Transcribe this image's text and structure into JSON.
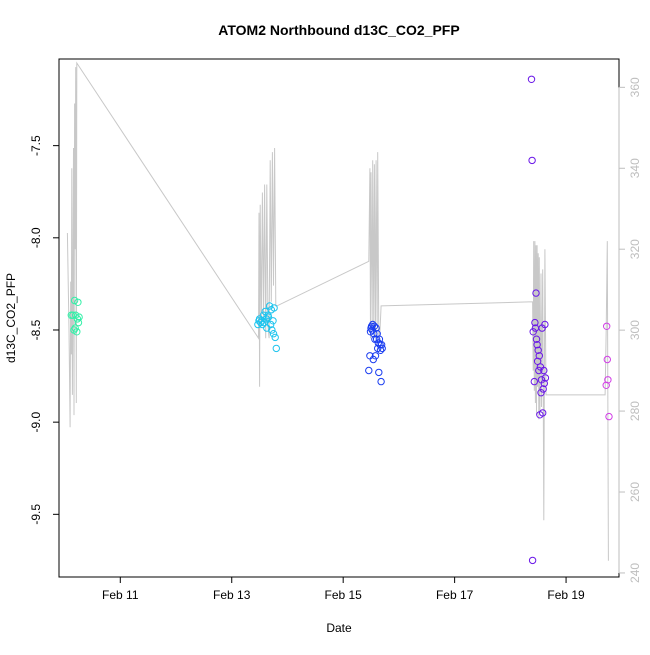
{
  "chart_data": {
    "type": "scatter",
    "title": "ATOM2 Northbound d13C_CO2_PFP",
    "xlabel": "Date",
    "ylabel": "d13C_CO2_PFP",
    "x_unit": "days in February",
    "xlim": [
      9.9,
      19.95
    ],
    "ylim": [
      -9.84,
      -7.03
    ],
    "y2lim": [
      239,
      367
    ],
    "x_ticks": [
      {
        "value": 11,
        "label": "Feb 11"
      },
      {
        "value": 13,
        "label": "Feb 13"
      },
      {
        "value": 15,
        "label": "Feb 15"
      },
      {
        "value": 17,
        "label": "Feb 17"
      },
      {
        "value": 19,
        "label": "Feb 19"
      }
    ],
    "y_ticks": [
      {
        "value": -7.5,
        "label": "-7.5"
      },
      {
        "value": -8.0,
        "label": "-8.0"
      },
      {
        "value": -8.5,
        "label": "-8.5"
      },
      {
        "value": -9.0,
        "label": "-9.0"
      },
      {
        "value": -9.5,
        "label": "-9.5"
      }
    ],
    "y2_ticks": [
      {
        "value": 240,
        "label": "240"
      },
      {
        "value": 260,
        "label": "260"
      },
      {
        "value": 280,
        "label": "280"
      },
      {
        "value": 300,
        "label": "300"
      },
      {
        "value": 320,
        "label": "320"
      },
      {
        "value": 340,
        "label": "340"
      },
      {
        "value": 360,
        "label": "360"
      }
    ],
    "line_color": "#c8c8c8",
    "grid": false,
    "series": [
      {
        "color": "#33f0a8",
        "points": [
          [
            10.12,
            -8.42
          ],
          [
            10.15,
            -8.42
          ],
          [
            10.17,
            -8.5
          ],
          [
            10.18,
            -8.34
          ],
          [
            10.19,
            -8.49
          ],
          [
            10.2,
            -8.42
          ],
          [
            10.22,
            -8.51
          ],
          [
            10.23,
            -8.44
          ],
          [
            10.24,
            -8.35
          ],
          [
            10.25,
            -8.46
          ],
          [
            10.26,
            -8.43
          ]
        ]
      },
      {
        "color": "#1ec4ee",
        "points": [
          [
            13.47,
            -8.47
          ],
          [
            13.49,
            -8.45
          ],
          [
            13.5,
            -8.44
          ],
          [
            13.52,
            -8.46
          ],
          [
            13.54,
            -8.45
          ],
          [
            13.55,
            -8.47
          ],
          [
            13.57,
            -8.42
          ],
          [
            13.58,
            -8.46
          ],
          [
            13.6,
            -8.4
          ],
          [
            13.62,
            -8.44
          ],
          [
            13.63,
            -8.49
          ],
          [
            13.65,
            -8.42
          ],
          [
            13.66,
            -8.43
          ],
          [
            13.68,
            -8.37
          ],
          [
            13.7,
            -8.47
          ],
          [
            13.71,
            -8.39
          ],
          [
            13.72,
            -8.5
          ],
          [
            13.74,
            -8.45
          ],
          [
            13.75,
            -8.52
          ],
          [
            13.76,
            -8.38
          ],
          [
            13.78,
            -8.54
          ],
          [
            13.8,
            -8.6
          ]
        ]
      },
      {
        "color": "#1a3df0",
        "points": [
          [
            15.46,
            -8.72
          ],
          [
            15.48,
            -8.64
          ],
          [
            15.49,
            -8.51
          ],
          [
            15.5,
            -8.49
          ],
          [
            15.51,
            -8.48
          ],
          [
            15.52,
            -8.5
          ],
          [
            15.53,
            -8.47
          ],
          [
            15.54,
            -8.66
          ],
          [
            15.55,
            -8.52
          ],
          [
            15.56,
            -8.48
          ],
          [
            15.57,
            -8.55
          ],
          [
            15.58,
            -8.64
          ],
          [
            15.59,
            -8.49
          ],
          [
            15.6,
            -8.55
          ],
          [
            15.61,
            -8.52
          ],
          [
            15.62,
            -8.6
          ],
          [
            15.63,
            -8.57
          ],
          [
            15.64,
            -8.73
          ],
          [
            15.65,
            -8.55
          ],
          [
            15.66,
            -8.58
          ],
          [
            15.67,
            -8.61
          ],
          [
            15.68,
            -8.78
          ],
          [
            15.69,
            -8.58
          ],
          [
            15.7,
            -8.6
          ]
        ]
      },
      {
        "color": "#6a17e8",
        "points": [
          [
            18.38,
            -7.14
          ],
          [
            18.39,
            -7.58
          ],
          [
            18.4,
            -9.75
          ],
          [
            18.41,
            -8.51
          ],
          [
            18.43,
            -8.78
          ],
          [
            18.44,
            -8.46
          ],
          [
            18.45,
            -8.49
          ],
          [
            18.46,
            -8.3
          ],
          [
            18.47,
            -8.55
          ],
          [
            18.48,
            -8.58
          ],
          [
            18.49,
            -8.67
          ],
          [
            18.5,
            -8.61
          ],
          [
            18.51,
            -8.72
          ],
          [
            18.52,
            -8.64
          ],
          [
            18.53,
            -8.96
          ],
          [
            18.54,
            -8.7
          ],
          [
            18.55,
            -8.84
          ],
          [
            18.56,
            -8.77
          ],
          [
            18.57,
            -8.49
          ],
          [
            18.58,
            -8.95
          ],
          [
            18.59,
            -8.82
          ],
          [
            18.6,
            -8.72
          ],
          [
            18.61,
            -8.79
          ],
          [
            18.62,
            -8.47
          ],
          [
            18.63,
            -8.76
          ]
        ]
      },
      {
        "color": "#d13fe6",
        "points": [
          [
            19.72,
            -8.8
          ],
          [
            19.73,
            -8.48
          ],
          [
            19.74,
            -8.66
          ],
          [
            19.75,
            -8.77
          ],
          [
            19.77,
            -8.97
          ]
        ]
      }
    ],
    "line_series": {
      "axis": "right",
      "points": [
        [
          10.05,
          324
        ],
        [
          10.08,
          300
        ],
        [
          10.1,
          276
        ],
        [
          10.11,
          312
        ],
        [
          10.12,
          294
        ],
        [
          10.13,
          340
        ],
        [
          10.14,
          284
        ],
        [
          10.15,
          310
        ],
        [
          10.16,
          345
        ],
        [
          10.17,
          279
        ],
        [
          10.18,
          356
        ],
        [
          10.19,
          320
        ],
        [
          10.2,
          365
        ],
        [
          10.21,
          282
        ],
        [
          10.22,
          366
        ],
        [
          13.48,
          298
        ],
        [
          13.49,
          329
        ],
        [
          13.5,
          286
        ],
        [
          13.51,
          331
        ],
        [
          13.53,
          301
        ],
        [
          13.55,
          334
        ],
        [
          13.57,
          303
        ],
        [
          13.59,
          336
        ],
        [
          13.61,
          298
        ],
        [
          13.63,
          336
        ],
        [
          13.65,
          301
        ],
        [
          13.67,
          298
        ],
        [
          13.69,
          342
        ],
        [
          13.71,
          307
        ],
        [
          13.73,
          344
        ],
        [
          13.75,
          311
        ],
        [
          13.77,
          345
        ],
        [
          13.79,
          306
        ],
        [
          13.81,
          306
        ],
        [
          15.46,
          317
        ],
        [
          15.48,
          340
        ],
        [
          15.49,
          298
        ],
        [
          15.5,
          339
        ],
        [
          15.52,
          302
        ],
        [
          15.53,
          342
        ],
        [
          15.55,
          300
        ],
        [
          15.56,
          341
        ],
        [
          15.58,
          298
        ],
        [
          15.59,
          342
        ],
        [
          15.61,
          301
        ],
        [
          15.62,
          344
        ],
        [
          15.64,
          298
        ],
        [
          15.66,
          300
        ],
        [
          15.68,
          306
        ],
        [
          18.4,
          307
        ],
        [
          18.41,
          290
        ],
        [
          18.42,
          322
        ],
        [
          18.43,
          285
        ],
        [
          18.44,
          322
        ],
        [
          18.45,
          282
        ],
        [
          18.46,
          321
        ],
        [
          18.47,
          279
        ],
        [
          18.48,
          321
        ],
        [
          18.49,
          286
        ],
        [
          18.5,
          319
        ],
        [
          18.51,
          278
        ],
        [
          18.52,
          318
        ],
        [
          18.53,
          280
        ],
        [
          18.55,
          314
        ],
        [
          18.56,
          281
        ],
        [
          18.58,
          315
        ],
        [
          18.6,
          253
        ],
        [
          18.62,
          320
        ],
        [
          18.64,
          284
        ],
        [
          19.7,
          284
        ],
        [
          19.72,
          300
        ],
        [
          19.74,
          322
        ],
        [
          19.76,
          243
        ]
      ]
    }
  }
}
